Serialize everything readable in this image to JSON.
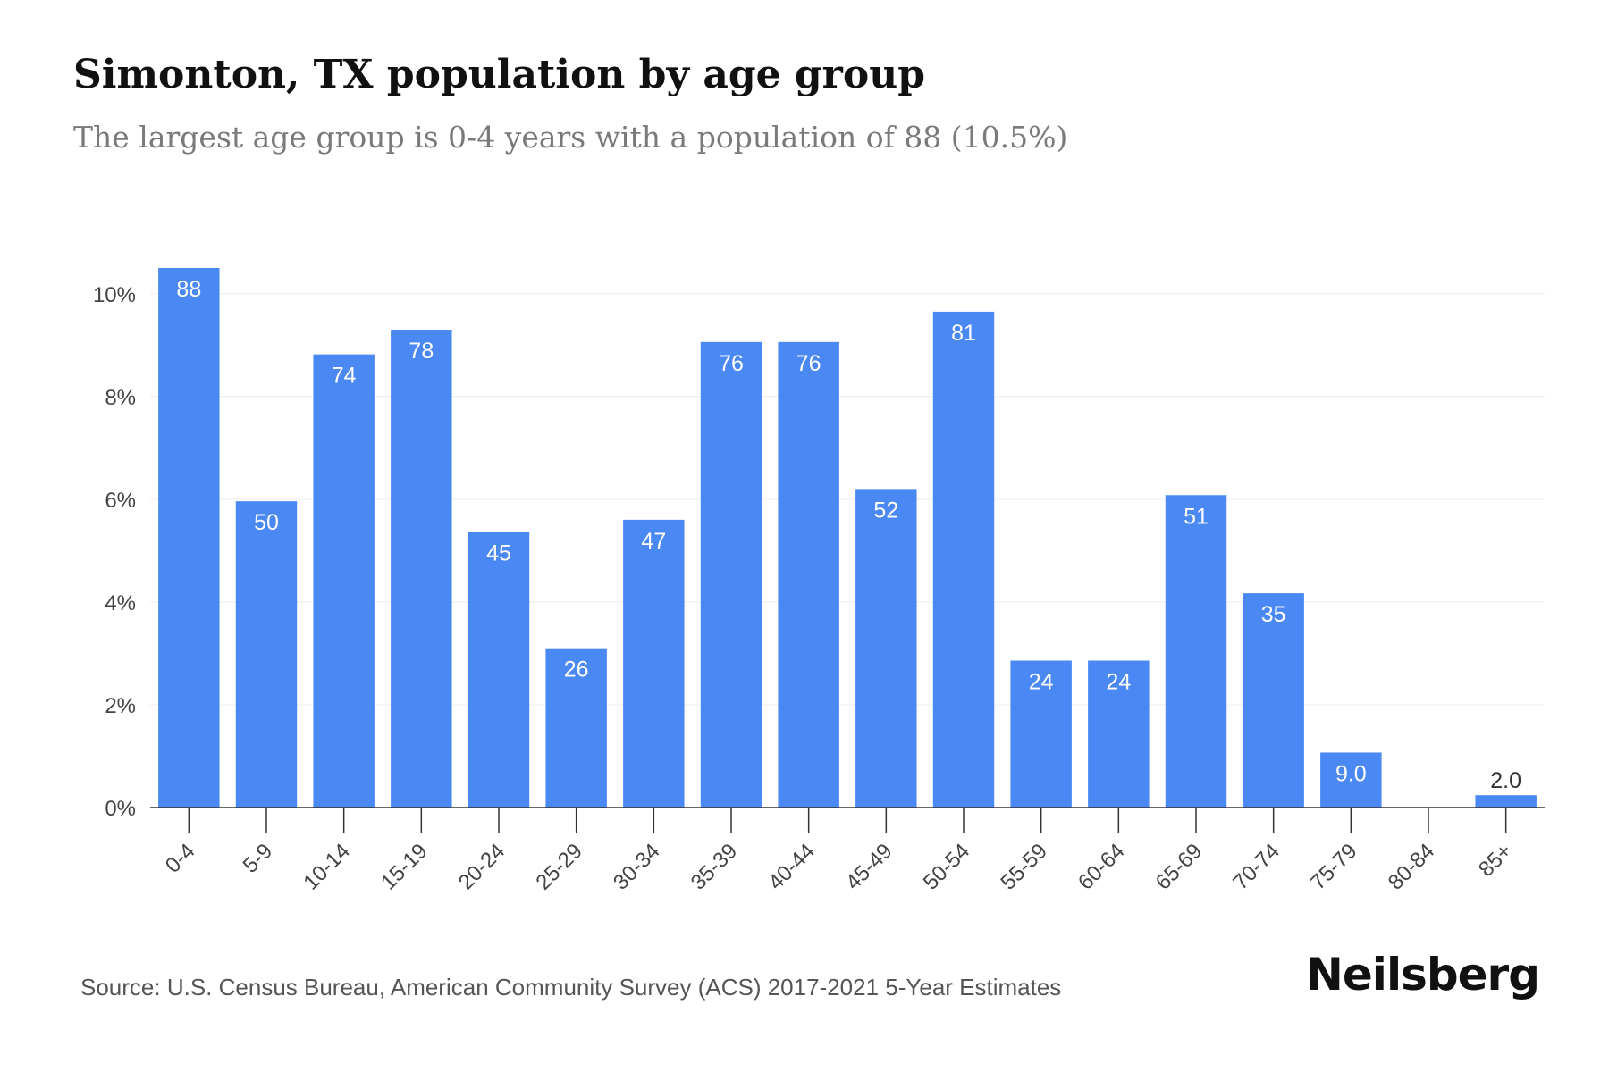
{
  "chart_data": {
    "type": "bar",
    "title": "Simonton, TX population by age group",
    "subtitle": "The largest age group is 0-4 years with a population of 88 (10.5%)",
    "categories": [
      "0-4",
      "5-9",
      "10-14",
      "15-19",
      "20-24",
      "25-29",
      "30-34",
      "35-39",
      "40-44",
      "45-49",
      "50-54",
      "55-59",
      "60-64",
      "65-69",
      "70-74",
      "75-79",
      "80-84",
      "85+"
    ],
    "series": [
      {
        "values": [
          10.5,
          5.96,
          8.82,
          9.3,
          5.36,
          3.1,
          5.6,
          9.06,
          9.06,
          6.2,
          9.65,
          2.86,
          2.86,
          6.08,
          4.17,
          1.07,
          0,
          0.24
        ]
      }
    ],
    "data_labels": [
      "88",
      "50",
      "74",
      "78",
      "45",
      "26",
      "47",
      "76",
      "76",
      "52",
      "81",
      "24",
      "24",
      "51",
      "35",
      "9.0",
      "",
      "2.0"
    ],
    "y_ticks": [
      "0%",
      "2%",
      "4%",
      "6%",
      "8%",
      "10%"
    ],
    "y_tick_values": [
      0,
      2,
      4,
      6,
      8,
      10
    ],
    "ylim": [
      0,
      10.5
    ],
    "grid": true,
    "legend": "none",
    "bar_color": "#4a89f3",
    "label_color_inside": "#ffffff",
    "label_color_outside": "#333333"
  },
  "footer": {
    "source": "Source: U.S. Census Bureau, American Community Survey (ACS) 2017-2021 5-Year Estimates",
    "brand": "Neilsberg"
  }
}
